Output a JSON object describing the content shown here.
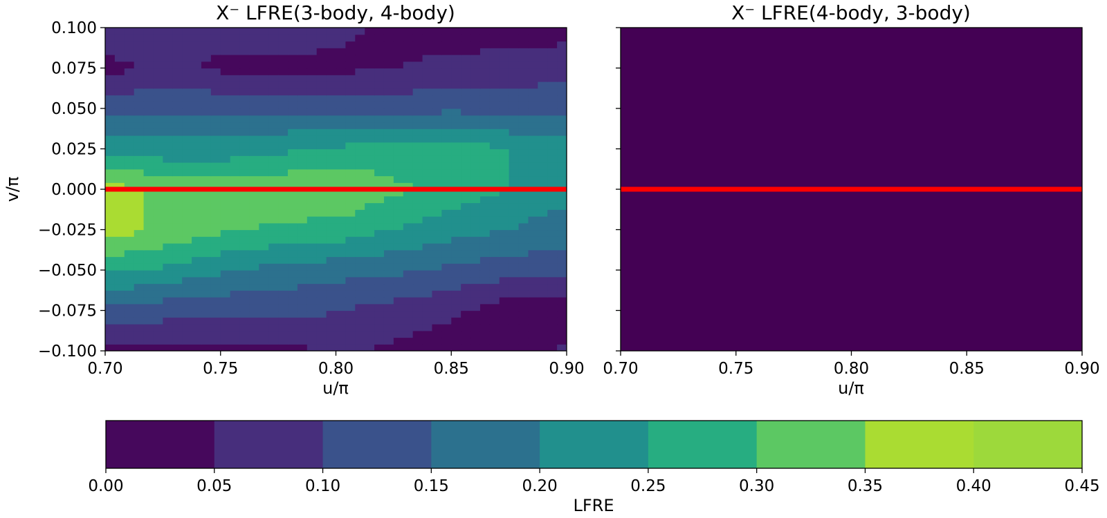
{
  "chart_data": [
    {
      "type": "heatmap",
      "title": "X⁻ LFRE(3-body, 4-body)",
      "xlabel": "u/π",
      "ylabel": "v/π",
      "xlim": [
        0.7,
        0.9
      ],
      "ylim": [
        -0.1,
        0.1
      ],
      "xticks": [
        "0.70",
        "0.75",
        "0.80",
        "0.85",
        "0.90"
      ],
      "yticks": [
        "0.100",
        "0.075",
        "0.050",
        "0.025",
        "0.000",
        "−0.025",
        "−0.050",
        "−0.075",
        "−0.100"
      ],
      "x": [
        0.7,
        0.725,
        0.75,
        0.775,
        0.8,
        0.825,
        0.85,
        0.875,
        0.9
      ],
      "y": [
        -0.1,
        -0.075,
        -0.05,
        -0.025,
        0.0,
        0.025,
        0.05,
        0.075,
        0.1
      ],
      "z": [
        [
          0.03,
          0.04,
          0.04,
          0.03,
          0.06,
          0.04,
          0.02,
          0.03,
          0.06
        ],
        [
          0.14,
          0.12,
          0.11,
          0.12,
          0.1,
          0.08,
          0.06,
          0.02,
          0.02
        ],
        [
          0.26,
          0.24,
          0.21,
          0.18,
          0.17,
          0.16,
          0.14,
          0.12,
          0.12
        ],
        [
          0.38,
          0.34,
          0.31,
          0.29,
          0.28,
          0.25,
          0.22,
          0.2,
          0.17
        ],
        [
          0.37,
          0.34,
          0.33,
          0.34,
          0.35,
          0.31,
          0.28,
          0.25,
          0.22
        ],
        [
          0.24,
          0.22,
          0.22,
          0.24,
          0.26,
          0.27,
          0.28,
          0.25,
          0.22
        ],
        [
          0.13,
          0.14,
          0.14,
          0.14,
          0.13,
          0.13,
          0.14,
          0.13,
          0.14
        ],
        [
          0.03,
          0.07,
          0.04,
          0.04,
          0.04,
          0.05,
          0.06,
          0.07,
          0.08
        ],
        [
          0.08,
          0.09,
          0.07,
          0.07,
          0.06,
          0.04,
          0.03,
          0.03,
          0.03
        ]
      ],
      "overlay_line": {
        "y": 0.0,
        "color": "#ff0000"
      }
    },
    {
      "type": "heatmap",
      "title": "X⁻ LFRE(4-body, 3-body)",
      "xlabel": "u/π",
      "ylabel": "",
      "xlim": [
        0.7,
        0.9
      ],
      "ylim": [
        -0.1,
        0.1
      ],
      "xticks": [
        "0.70",
        "0.75",
        "0.80",
        "0.85",
        "0.90"
      ],
      "fill_value": 0.0,
      "fill_color": "#440154",
      "overlay_line": {
        "y": 0.0,
        "color": "#ff0000"
      }
    }
  ],
  "colorbar": {
    "label": "LFRE",
    "levels": [
      0.0,
      0.05,
      0.1,
      0.15,
      0.2,
      0.25,
      0.3,
      0.35,
      0.4,
      0.45
    ],
    "tick_labels": [
      "0.00",
      "0.05",
      "0.10",
      "0.15",
      "0.20",
      "0.25",
      "0.30",
      "0.35",
      "0.40",
      "0.45"
    ],
    "colors": [
      "#46085c",
      "#472e7c",
      "#3a528b",
      "#2c718e",
      "#21908d",
      "#27ad81",
      "#5cc863",
      "#aadc32",
      "#9dd93b"
    ]
  }
}
